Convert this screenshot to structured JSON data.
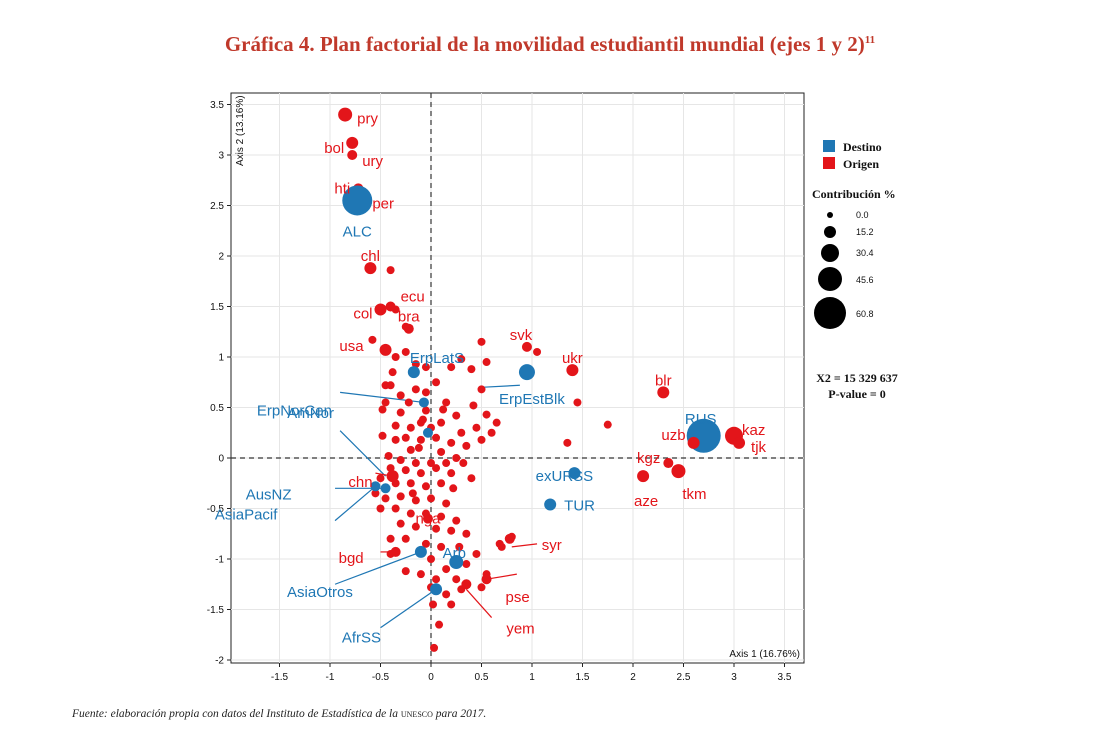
{
  "title": "Gráfica 4. Plan factorial de la movilidad estudiantil mundial (ejes 1 y 2)",
  "title_footnote": "11",
  "source_prefix": "Fuente: elaboración propia con datos del Instituto de Estadística de la ",
  "source_org": "unesco",
  "source_suffix": " para 2017.",
  "colors": {
    "destino": "#1f77b4",
    "origen": "#e3151a"
  },
  "chart_data": {
    "type": "scatter",
    "xlabel": "Axis 1 (16.76%)",
    "ylabel": "Axis 2 (13.16%)",
    "xlim": [
      -2.0,
      3.7
    ],
    "ylim": [
      -2.0,
      3.6
    ],
    "x_ticks": [
      "-1.5",
      "-1",
      "-0.5",
      "0",
      "0.5",
      "1",
      "1.5",
      "2",
      "2.5",
      "3",
      "3.5"
    ],
    "y_ticks": [
      "-2",
      "-1.5",
      "-1",
      "-0.5",
      "0",
      "0.5",
      "1",
      "1.5",
      "2",
      "2.5",
      "3",
      "3.5"
    ],
    "legend": {
      "items": [
        {
          "name": "Destino",
          "color": "#1f77b4"
        },
        {
          "name": "Origen",
          "color": "#e3151a"
        }
      ],
      "size_title": "Contribución %",
      "sizes": [
        "0.0",
        "15.2",
        "30.4",
        "45.6",
        "60.8"
      ]
    },
    "stats": [
      "X2 = 15 329 637",
      "P-value = 0"
    ],
    "labeled_points": [
      {
        "label": "pry",
        "x": -0.85,
        "y": 3.4,
        "group": "Origen",
        "size": 4
      },
      {
        "label": "bol",
        "x": -0.78,
        "y": 3.12,
        "group": "Origen",
        "size": 3
      },
      {
        "label": "ury",
        "x": -0.78,
        "y": 3.0,
        "group": "Origen",
        "size": 2
      },
      {
        "label": "hti",
        "x": -0.72,
        "y": 2.67,
        "group": "Origen",
        "size": 2
      },
      {
        "label": "per",
        "x": -0.68,
        "y": 2.58,
        "group": "Origen",
        "size": 4
      },
      {
        "label": "ALC",
        "x": -0.73,
        "y": 2.55,
        "group": "Destino",
        "size": 12
      },
      {
        "label": "chl",
        "x": -0.6,
        "y": 1.88,
        "group": "Origen",
        "size": 3
      },
      {
        "label": "ecu",
        "x": -0.4,
        "y": 1.5,
        "group": "Origen",
        "size": 2
      },
      {
        "label": "col",
        "x": -0.5,
        "y": 1.47,
        "group": "Origen",
        "size": 3
      },
      {
        "label": "bra",
        "x": -0.22,
        "y": 1.28,
        "group": "Origen",
        "size": 2
      },
      {
        "label": "usa",
        "x": -0.45,
        "y": 1.07,
        "group": "Origen",
        "size": 3
      },
      {
        "label": "ErpLatS",
        "x": -0.17,
        "y": 0.85,
        "group": "Destino",
        "size": 3
      },
      {
        "label": "ErpNorCen",
        "x": -0.07,
        "y": 0.55,
        "group": "Destino",
        "size": 2
      },
      {
        "label": "svk",
        "x": 0.95,
        "y": 1.1,
        "group": "Origen",
        "size": 2
      },
      {
        "label": "ukr",
        "x": 1.4,
        "y": 0.87,
        "group": "Origen",
        "size": 3
      },
      {
        "label": "ErpEstBlk",
        "x": 0.95,
        "y": 0.85,
        "group": "Destino",
        "size": 5
      },
      {
        "label": "blr",
        "x": 2.3,
        "y": 0.65,
        "group": "Origen",
        "size": 3
      },
      {
        "label": "RUS",
        "x": 2.7,
        "y": 0.22,
        "group": "Destino",
        "size": 14
      },
      {
        "label": "kaz",
        "x": 3.0,
        "y": 0.22,
        "group": "Origen",
        "size": 6
      },
      {
        "label": "uzb",
        "x": 2.6,
        "y": 0.15,
        "group": "Origen",
        "size": 3
      },
      {
        "label": "tjk",
        "x": 3.05,
        "y": 0.15,
        "group": "Origen",
        "size": 3
      },
      {
        "label": "AmNor",
        "x": -0.03,
        "y": 0.25,
        "group": "Destino",
        "size": 2
      },
      {
        "label": "exURSS",
        "x": 1.42,
        "y": -0.15,
        "group": "Destino",
        "size": 3
      },
      {
        "label": "kgz",
        "x": 2.35,
        "y": -0.05,
        "group": "Origen",
        "size": 2
      },
      {
        "label": "aze",
        "x": 2.1,
        "y": -0.18,
        "group": "Origen",
        "size": 3
      },
      {
        "label": "tkm",
        "x": 2.45,
        "y": -0.13,
        "group": "Origen",
        "size": 4
      },
      {
        "label": "chn",
        "x": -0.38,
        "y": -0.18,
        "group": "Origen",
        "size": 3
      },
      {
        "label": "AusNZ",
        "x": -0.45,
        "y": -0.3,
        "group": "Destino",
        "size": 2
      },
      {
        "label": "TUR",
        "x": 1.18,
        "y": -0.46,
        "group": "Destino",
        "size": 3
      },
      {
        "label": "AsiaPacif",
        "x": -0.55,
        "y": -0.28,
        "group": "Destino",
        "size": 2
      },
      {
        "label": "nga",
        "x": -0.03,
        "y": -0.6,
        "group": "Origen",
        "size": 2
      },
      {
        "label": "Arb",
        "x": 0.25,
        "y": -1.03,
        "group": "Destino",
        "size": 4
      },
      {
        "label": "syr",
        "x": 0.78,
        "y": -0.8,
        "group": "Origen",
        "size": 2
      },
      {
        "label": "bgd",
        "x": -0.35,
        "y": -0.93,
        "group": "Origen",
        "size": 2
      },
      {
        "label": "AsiaOtros",
        "x": -0.1,
        "y": -0.93,
        "group": "Destino",
        "size": 3
      },
      {
        "label": "pse",
        "x": 0.55,
        "y": -1.2,
        "group": "Origen",
        "size": 2
      },
      {
        "label": "AfrSS",
        "x": 0.05,
        "y": -1.3,
        "group": "Destino",
        "size": 3
      },
      {
        "label": "yem",
        "x": 0.35,
        "y": -1.25,
        "group": "Origen",
        "size": 2
      }
    ],
    "other_points": [
      [
        -0.4,
        1.86
      ],
      [
        -0.48,
        1.48
      ],
      [
        -0.35,
        1.47
      ],
      [
        -0.58,
        1.17
      ],
      [
        -0.25,
        1.3
      ],
      [
        -0.35,
        1.0
      ],
      [
        -0.25,
        1.05
      ],
      [
        -0.38,
        0.85
      ],
      [
        -0.15,
        0.93
      ],
      [
        -0.05,
        0.9
      ],
      [
        -0.45,
        0.72
      ],
      [
        -0.4,
        0.72
      ],
      [
        -0.3,
        0.62
      ],
      [
        -0.15,
        0.68
      ],
      [
        -0.05,
        0.65
      ],
      [
        0.05,
        0.75
      ],
      [
        0.2,
        0.9
      ],
      [
        0.4,
        0.88
      ],
      [
        0.5,
        1.15
      ],
      [
        0.5,
        0.68
      ],
      [
        -0.45,
        0.55
      ],
      [
        -0.48,
        0.48
      ],
      [
        -0.22,
        0.55
      ],
      [
        -0.05,
        0.47
      ],
      [
        0.12,
        0.48
      ],
      [
        0.25,
        0.42
      ],
      [
        0.42,
        0.52
      ],
      [
        0.55,
        0.43
      ],
      [
        0.65,
        0.35
      ],
      [
        -0.08,
        0.38
      ],
      [
        -0.35,
        0.32
      ],
      [
        -0.2,
        0.3
      ],
      [
        -0.1,
        0.35
      ],
      [
        0.0,
        0.3
      ],
      [
        0.1,
        0.35
      ],
      [
        0.3,
        0.25
      ],
      [
        0.45,
        0.3
      ],
      [
        0.6,
        0.25
      ],
      [
        -0.48,
        0.22
      ],
      [
        -0.35,
        0.18
      ],
      [
        -0.25,
        0.2
      ],
      [
        -0.1,
        0.18
      ],
      [
        0.05,
        0.2
      ],
      [
        0.2,
        0.15
      ],
      [
        0.35,
        0.12
      ],
      [
        0.5,
        0.18
      ],
      [
        -0.2,
        0.08
      ],
      [
        0.1,
        0.06
      ],
      [
        0.25,
        0.0
      ],
      [
        -0.42,
        0.02
      ],
      [
        -0.3,
        -0.02
      ],
      [
        -0.15,
        -0.05
      ],
      [
        0.0,
        -0.05
      ],
      [
        0.15,
        -0.05
      ],
      [
        -0.4,
        -0.1
      ],
      [
        -0.25,
        -0.12
      ],
      [
        -0.1,
        -0.15
      ],
      [
        0.05,
        -0.1
      ],
      [
        0.2,
        -0.15
      ],
      [
        -0.5,
        -0.2
      ],
      [
        -0.35,
        -0.25
      ],
      [
        -0.2,
        -0.25
      ],
      [
        -0.05,
        -0.28
      ],
      [
        0.1,
        -0.25
      ],
      [
        0.22,
        -0.3
      ],
      [
        -0.55,
        -0.35
      ],
      [
        -0.45,
        -0.4
      ],
      [
        -0.3,
        -0.38
      ],
      [
        -0.15,
        -0.42
      ],
      [
        0.0,
        -0.4
      ],
      [
        0.15,
        -0.45
      ],
      [
        -0.5,
        -0.5
      ],
      [
        -0.35,
        -0.5
      ],
      [
        -0.2,
        -0.55
      ],
      [
        -0.05,
        -0.55
      ],
      [
        0.1,
        -0.58
      ],
      [
        0.25,
        -0.62
      ],
      [
        -0.3,
        -0.65
      ],
      [
        -0.15,
        -0.68
      ],
      [
        0.05,
        -0.7
      ],
      [
        0.2,
        -0.72
      ],
      [
        0.35,
        -0.75
      ],
      [
        -0.4,
        -0.8
      ],
      [
        -0.25,
        -0.8
      ],
      [
        -0.05,
        -0.85
      ],
      [
        0.1,
        -0.88
      ],
      [
        0.28,
        -0.88
      ],
      [
        0.45,
        -0.95
      ],
      [
        0.68,
        -0.85
      ],
      [
        0.7,
        -0.88
      ],
      [
        -0.4,
        -0.95
      ],
      [
        0.0,
        -1.0
      ],
      [
        0.15,
        -1.1
      ],
      [
        0.35,
        -1.05
      ],
      [
        -0.25,
        -1.12
      ],
      [
        -0.1,
        -1.15
      ],
      [
        0.05,
        -1.2
      ],
      [
        0.25,
        -1.2
      ],
      [
        0.5,
        -1.28
      ],
      [
        0.55,
        -1.15
      ],
      [
        0.0,
        -1.28
      ],
      [
        0.15,
        -1.35
      ],
      [
        0.3,
        -1.3
      ],
      [
        0.02,
        -1.45
      ],
      [
        0.2,
        -1.45
      ],
      [
        0.08,
        -1.65
      ],
      [
        0.03,
        -1.88
      ],
      [
        0.8,
        -0.78
      ],
      [
        1.05,
        1.05
      ],
      [
        1.35,
        0.15
      ],
      [
        1.75,
        0.33
      ],
      [
        1.45,
        0.55
      ],
      [
        0.55,
        0.95
      ],
      [
        0.3,
        0.98
      ],
      [
        -0.18,
        -0.35
      ],
      [
        0.32,
        -0.05
      ],
      [
        0.4,
        -0.2
      ],
      [
        -0.3,
        0.45
      ],
      [
        0.15,
        0.55
      ],
      [
        -0.12,
        0.1
      ]
    ],
    "leader_lines": [
      {
        "label": "ErpNorCen",
        "from": [
          -0.9,
          0.65
        ],
        "to": [
          -0.07,
          0.55
        ]
      },
      {
        "label": "ErpEstBlk",
        "from": [
          0.88,
          0.72
        ],
        "to": [
          0.5,
          0.7
        ]
      },
      {
        "label": "AmNor",
        "from": [
          -0.9,
          0.27
        ],
        "to": [
          -0.45,
          -0.18
        ]
      },
      {
        "label": "chn",
        "from": [
          -0.55,
          -0.15
        ],
        "to": [
          -0.38,
          -0.18
        ]
      },
      {
        "label": "AusNZ",
        "from": [
          -0.95,
          -0.3
        ],
        "to": [
          -0.45,
          -0.3
        ]
      },
      {
        "label": "AsiaPacif",
        "from": [
          -0.95,
          -0.62
        ],
        "to": [
          -0.55,
          -0.28
        ]
      },
      {
        "label": "bgd",
        "from": [
          -0.5,
          -0.93
        ],
        "to": [
          -0.35,
          -0.93
        ]
      },
      {
        "label": "AsiaOtros",
        "from": [
          -0.95,
          -1.25
        ],
        "to": [
          -0.1,
          -0.93
        ]
      },
      {
        "label": "AfrSS",
        "from": [
          -0.5,
          -1.68
        ],
        "to": [
          0.05,
          -1.3
        ]
      },
      {
        "label": "syr",
        "from": [
          1.05,
          -0.85
        ],
        "to": [
          0.8,
          -0.88
        ]
      },
      {
        "label": "pse",
        "from": [
          0.85,
          -1.15
        ],
        "to": [
          0.55,
          -1.2
        ]
      },
      {
        "label": "yem",
        "from": [
          0.6,
          -1.58
        ],
        "to": [
          0.35,
          -1.3
        ]
      }
    ]
  }
}
